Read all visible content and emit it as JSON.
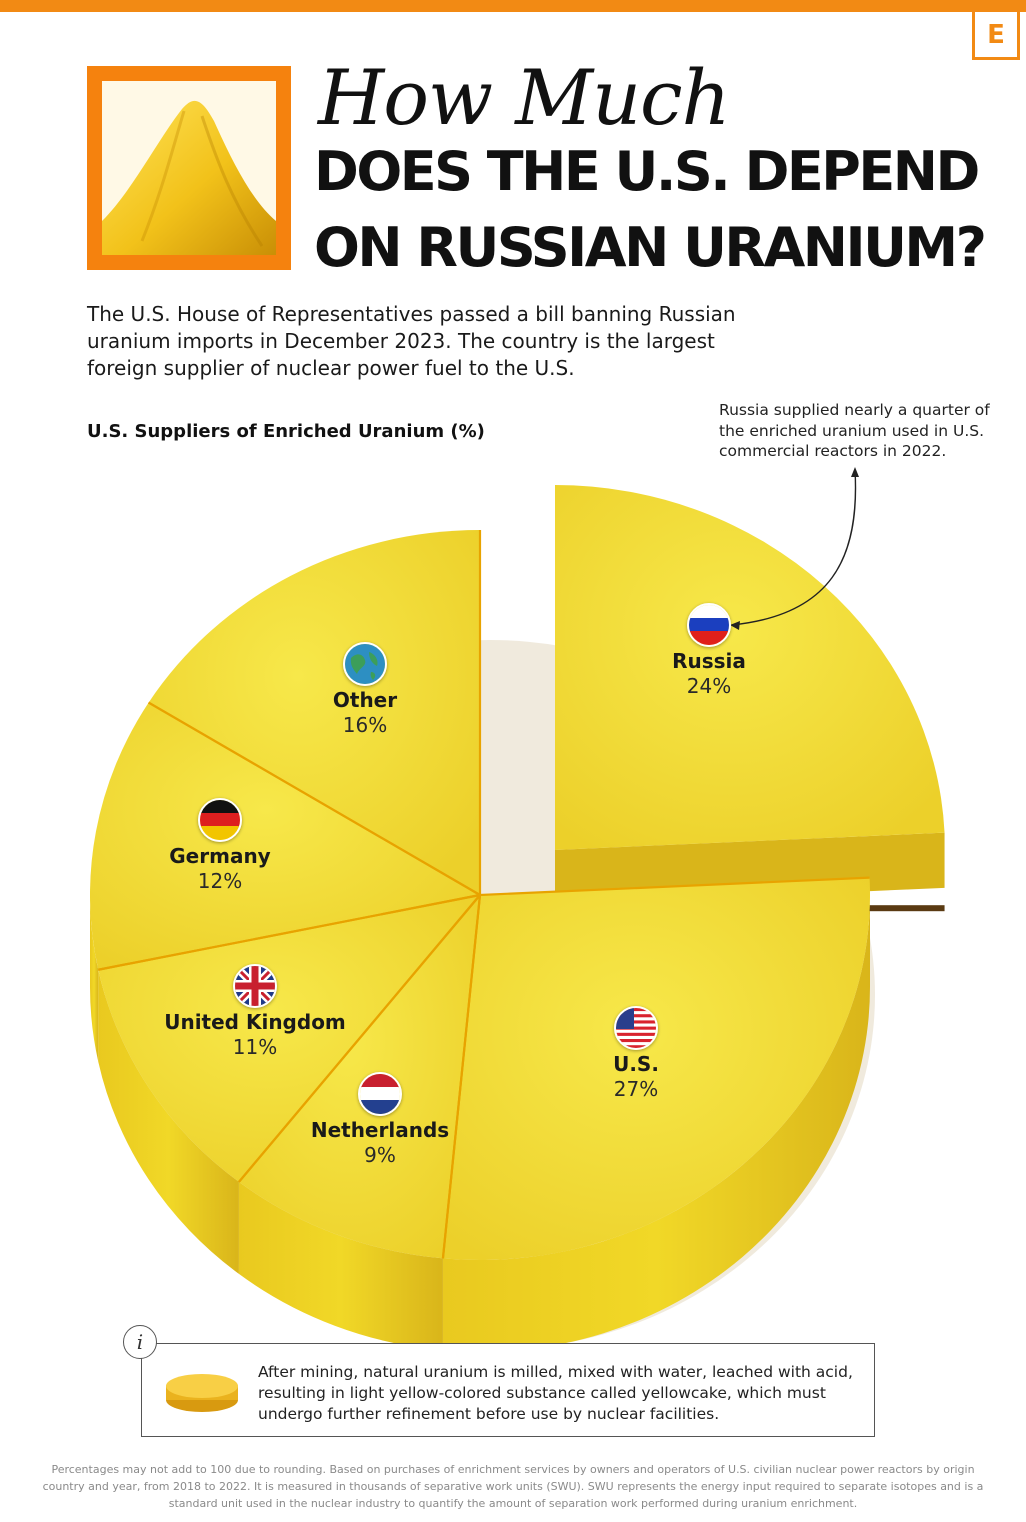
{
  "header": {
    "logo_letter": "E",
    "title_script": "How Much",
    "title_line1": "DOES THE U.S. DEPEND",
    "title_line2": "ON RUSSIAN URANIUM?"
  },
  "intro": "The U.S. House of Representatives passed a bill banning Russian uranium imports in December 2023. The country is the largest foreign supplier of nuclear power fuel to the U.S.",
  "callout": "Russia supplied nearly a quarter of the enriched uranium used in U.S. commercial reactors in 2022.",
  "info": {
    "icon_glyph": "i",
    "text": "After mining, natural uranium is milled, mixed with water, leached with acid, resulting in light yellow-colored substance called yellowcake, which must undergo further refinement before use by nuclear facilities."
  },
  "footnote": "Percentages may not add to 100 due to rounding. Based on purchases of enrichment services by owners and operators of U.S. civilian nuclear power reactors by origin country and year, from 2018 to 2022. It is measured in thousands of separative work units (SWU). SWU represents the energy input required to separate isotopes and is a standard unit used in the nuclear industry to quantify the amount of separation work performed during uranium enrichment.",
  "colors": {
    "brand_orange": "#f28a14",
    "pie_yellow": "#f3dd2a",
    "pie_dark": "#d9b51a",
    "divider": "#e8a300"
  },
  "chart_data": {
    "type": "pie",
    "title": "U.S. Suppliers of Enriched Uranium (%)",
    "exploded_slice": "Russia",
    "slices": [
      {
        "label": "Russia",
        "value": 24,
        "value_label": "24%",
        "flag_icon": "russia-flag-icon"
      },
      {
        "label": "U.S.",
        "value": 27,
        "value_label": "27%",
        "flag_icon": "usa-flag-icon"
      },
      {
        "label": "Netherlands",
        "value": 9,
        "value_label": "9%",
        "flag_icon": "netherlands-flag-icon"
      },
      {
        "label": "United Kingdom",
        "value": 11,
        "value_label": "11%",
        "flag_icon": "uk-flag-icon"
      },
      {
        "label": "Germany",
        "value": 12,
        "value_label": "12%",
        "flag_icon": "germany-flag-icon"
      },
      {
        "label": "Other",
        "value": 16,
        "value_label": "16%",
        "flag_icon": "globe-icon"
      }
    ]
  }
}
